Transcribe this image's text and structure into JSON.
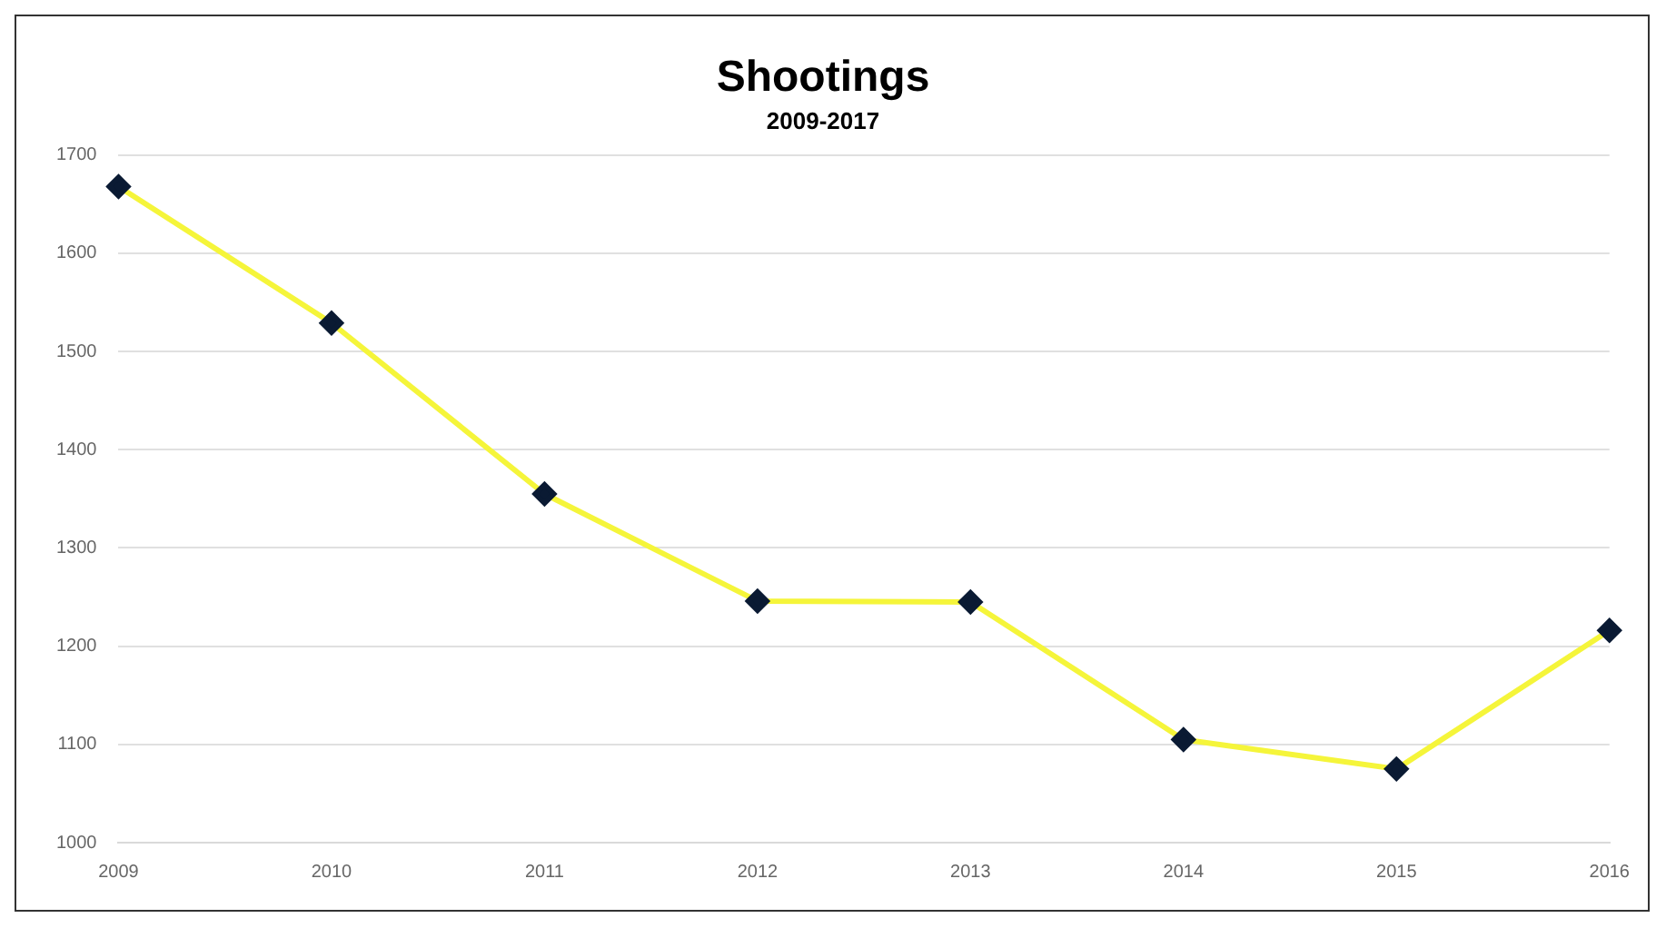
{
  "chart_data": {
    "type": "line",
    "title": "Shootings",
    "subtitle": "2009-2017",
    "categories": [
      "2009",
      "2010",
      "2011",
      "2012",
      "2013",
      "2014",
      "2015",
      "2016"
    ],
    "series": [
      {
        "color": "#f5f53a",
        "values": [
          1668,
          1529,
          1355,
          1246,
          1245,
          1105,
          1075,
          1216
        ]
      }
    ],
    "ylim": [
      1000,
      1700
    ],
    "yticks": [
      1000,
      1100,
      1200,
      1300,
      1400,
      1500,
      1600,
      1700
    ],
    "grid": "y",
    "legend": false,
    "marker": "diamond",
    "line_style": "solid"
  }
}
